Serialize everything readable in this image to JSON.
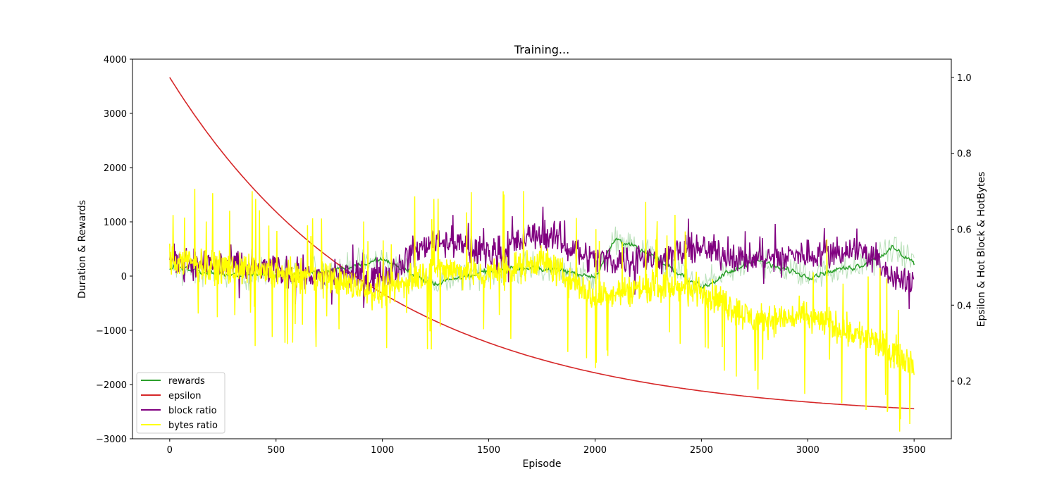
{
  "chart_data": {
    "type": "line",
    "title": "Training...",
    "xlabel": "Episode",
    "ylabel": "Duration & Rewards",
    "y2label": "Epsilon & Hot Block & HotBytes",
    "xlim": [
      -175,
      3675
    ],
    "ylim": [
      -3000,
      4000
    ],
    "y2lim": [
      0.048,
      1.048
    ],
    "x_ticks": [
      0,
      500,
      1000,
      1500,
      2000,
      2500,
      3000,
      3500
    ],
    "y_ticks": [
      -3000,
      -2000,
      -1000,
      0,
      1000,
      2000,
      3000,
      4000
    ],
    "y_tick_labels": [
      "−3000",
      "−2000",
      "−1000",
      "0",
      "1000",
      "2000",
      "3000",
      "4000"
    ],
    "y2_ticks": [
      0.2,
      0.4,
      0.6,
      0.8,
      1.0
    ],
    "y2_tick_labels": [
      "0.2",
      "0.4",
      "0.6",
      "0.8",
      "1.0"
    ],
    "grid": false,
    "legend_position": "lower-left",
    "series": [
      {
        "name": "rewards",
        "axis": "left",
        "color": "#2ca02c",
        "band_color": "#a8d8a8",
        "x": [
          0,
          250,
          500,
          750,
          1000,
          1250,
          1500,
          1750,
          2000,
          2100,
          2250,
          2500,
          2750,
          3000,
          3250,
          3400,
          3500
        ],
        "values": [
          150,
          50,
          0,
          100,
          300,
          -150,
          100,
          150,
          0,
          700,
          400,
          -200,
          300,
          0,
          200,
          500,
          250
        ]
      },
      {
        "name": "epsilon",
        "axis": "right",
        "color": "#d62728",
        "x": [
          0,
          250,
          500,
          750,
          1000,
          1250,
          1500,
          1750,
          2000,
          2250,
          2500,
          2750,
          3000,
          3250,
          3500
        ],
        "values": [
          1.0,
          0.82,
          0.67,
          0.55,
          0.45,
          0.37,
          0.305,
          0.255,
          0.215,
          0.18,
          0.155,
          0.135,
          0.12,
          0.11,
          0.1
        ]
      },
      {
        "name": "block ratio",
        "axis": "left",
        "color": "#800080",
        "x": [
          0,
          250,
          500,
          750,
          1000,
          1250,
          1500,
          1750,
          2000,
          2250,
          2500,
          2750,
          3000,
          3250,
          3400,
          3500
        ],
        "values": [
          300,
          200,
          100,
          0,
          0,
          700,
          400,
          800,
          300,
          300,
          500,
          300,
          400,
          500,
          0,
          -200
        ]
      },
      {
        "name": "bytes ratio",
        "axis": "right",
        "color": "#ffff00",
        "x": [
          0,
          250,
          500,
          750,
          1000,
          1250,
          1500,
          1750,
          2000,
          2250,
          2500,
          2750,
          3000,
          3250,
          3500
        ],
        "values": [
          0.52,
          0.5,
          0.48,
          0.47,
          0.43,
          0.5,
          0.48,
          0.52,
          0.42,
          0.45,
          0.44,
          0.36,
          0.37,
          0.32,
          0.25
        ]
      }
    ]
  }
}
